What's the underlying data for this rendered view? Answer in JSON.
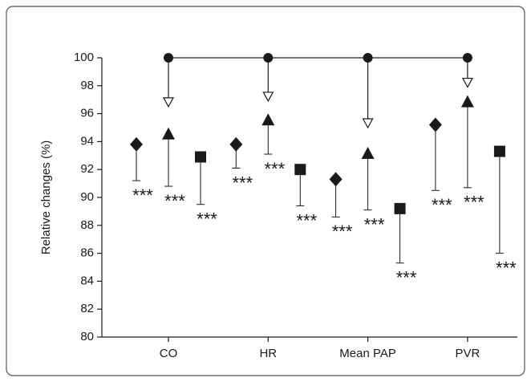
{
  "chart_data": {
    "type": "errorbar",
    "y_label": "Relative changes (%)",
    "categories": [
      "CO",
      "HR",
      "Mean PAP",
      "PVR"
    ],
    "ylim": [
      80,
      100
    ],
    "yticks": [
      80,
      82,
      84,
      86,
      88,
      90,
      92,
      94,
      96,
      98,
      100
    ],
    "baseline": {
      "values": [
        100,
        100,
        100,
        100
      ],
      "marker": "circle",
      "color": "#1a1a1a"
    },
    "arrows": {
      "values": [
        96.5,
        96.9,
        95.0,
        97.9
      ],
      "marker": "open-triangle-down",
      "color": "#1a1a1a"
    },
    "series": [
      {
        "marker": "diamond",
        "color": "#1a1a1a",
        "values": [
          93.8,
          93.8,
          91.3,
          95.2
        ],
        "errors": [
          2.6,
          1.7,
          2.7,
          4.7
        ],
        "labels": [
          "***",
          "***",
          "***",
          "***"
        ]
      },
      {
        "marker": "triangle",
        "color": "#1a1a1a",
        "values": [
          94.5,
          95.5,
          93.1,
          96.8
        ],
        "errors": [
          3.7,
          2.4,
          4.0,
          6.1
        ],
        "labels": [
          "***",
          "***",
          "***",
          "***"
        ]
      },
      {
        "marker": "square",
        "color": "#1a1a1a",
        "values": [
          92.9,
          92.0,
          89.2,
          93.3
        ],
        "errors": [
          3.4,
          2.6,
          3.9,
          7.3
        ],
        "labels": [
          "***",
          "***",
          "***",
          "***"
        ]
      }
    ]
  }
}
